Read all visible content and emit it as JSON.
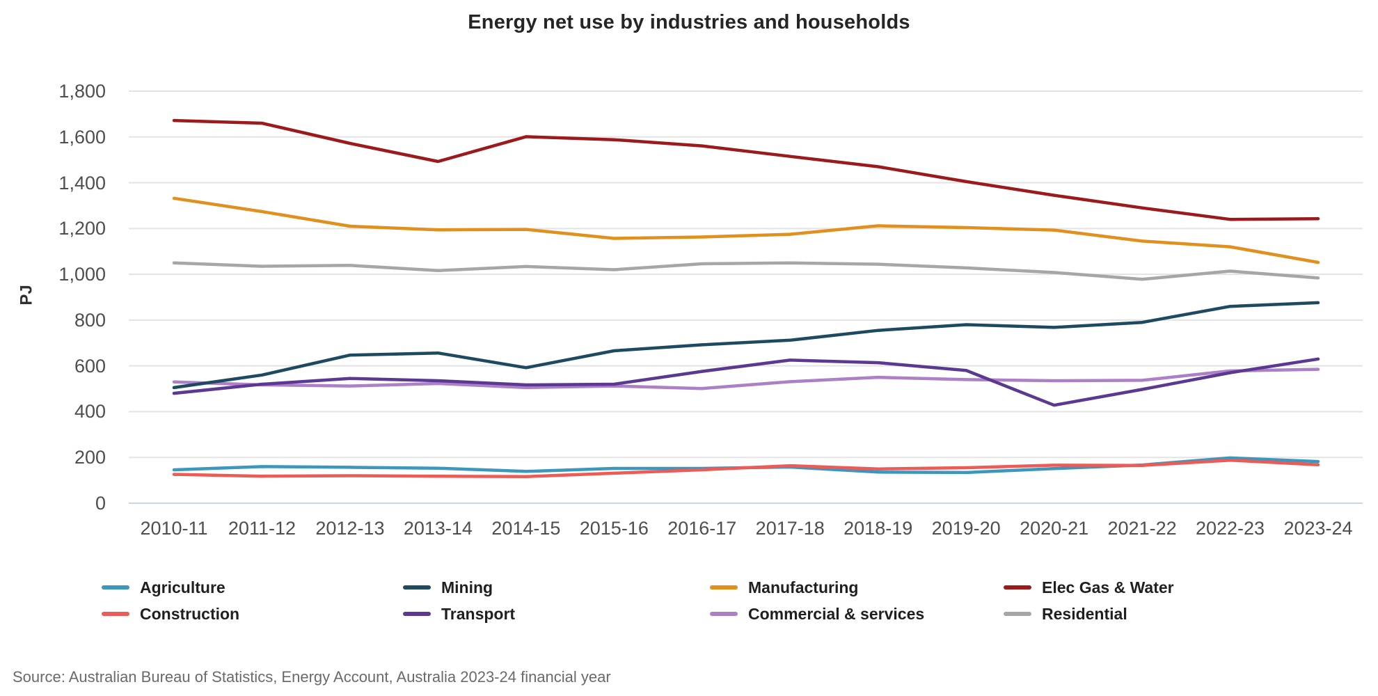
{
  "title": "Energy net use by industries and households",
  "source": "Source: Australian Bureau of Statistics, Energy Account, Australia 2023-24 financial year",
  "chart_data": {
    "type": "line",
    "title": "Energy net use by industries and households",
    "xlabel": "",
    "ylabel": "PJ",
    "ylim": [
      0,
      1800
    ],
    "ytick_step": 200,
    "ytick_labels": [
      "0",
      "200",
      "400",
      "600",
      "800",
      "1,000",
      "1,200",
      "1,400",
      "1,600",
      "1,800"
    ],
    "grid": "horizontal",
    "legend_position": "bottom",
    "categories": [
      "2010-11",
      "2011-12",
      "2012-13",
      "2013-14",
      "2014-15",
      "2015-16",
      "2016-17",
      "2017-18",
      "2018-19",
      "2019-20",
      "2020-21",
      "2021-22",
      "2022-23",
      "2023-24"
    ],
    "series": [
      {
        "name": "Agriculture",
        "color": "#3D96BC",
        "values": [
          146,
          160,
          157,
          153,
          139,
          152,
          152,
          158,
          136,
          134,
          151,
          167,
          198,
          182
        ]
      },
      {
        "name": "Mining",
        "color": "#1D4A60",
        "values": [
          505,
          560,
          647,
          656,
          592,
          666,
          692,
          712,
          755,
          780,
          768,
          790,
          860,
          876
        ]
      },
      {
        "name": "Manufacturing",
        "color": "#E2901D",
        "values": [
          1332,
          1274,
          1210,
          1194,
          1196,
          1157,
          1163,
          1175,
          1212,
          1204,
          1193,
          1145,
          1120,
          1052
        ]
      },
      {
        "name": "Elec Gas & Water",
        "color": "#9C1A1C",
        "values": [
          1672,
          1660,
          1572,
          1493,
          1601,
          1588,
          1561,
          1515,
          1470,
          1405,
          1345,
          1290,
          1240,
          1243
        ]
      },
      {
        "name": "Construction",
        "color": "#EC5B56",
        "values": [
          126,
          118,
          120,
          118,
          116,
          131,
          146,
          164,
          150,
          155,
          166,
          165,
          188,
          168
        ]
      },
      {
        "name": "Transport",
        "color": "#5B3993",
        "values": [
          480,
          520,
          545,
          535,
          517,
          520,
          576,
          625,
          614,
          580,
          428,
          497,
          570,
          630
        ]
      },
      {
        "name": "Commercial & services",
        "color": "#AC7FC7",
        "values": [
          530,
          517,
          512,
          523,
          505,
          512,
          501,
          531,
          550,
          540,
          535,
          537,
          578,
          585
        ]
      },
      {
        "name": "Residential",
        "color": "#A6A6A6",
        "values": [
          1050,
          1035,
          1039,
          1016,
          1034,
          1020,
          1046,
          1050,
          1044,
          1028,
          1008,
          978,
          1014,
          984
        ]
      }
    ],
    "draw_order": [
      "Residential",
      "Manufacturing",
      "Elec Gas & Water",
      "Commercial & services",
      "Mining",
      "Transport",
      "Agriculture",
      "Construction"
    ],
    "legend_rows": [
      [
        "Agriculture",
        "Mining",
        "Manufacturing",
        "Elec Gas & Water"
      ],
      [
        "Construction",
        "Transport",
        "Commercial & services",
        "Residential"
      ]
    ],
    "colors": {
      "gridline": "#E3E3E3",
      "zero_line": "#C9D5E8",
      "tick_text": "#4E4E4E",
      "title_text": "#252525",
      "source_text": "#6A6A6A"
    }
  }
}
